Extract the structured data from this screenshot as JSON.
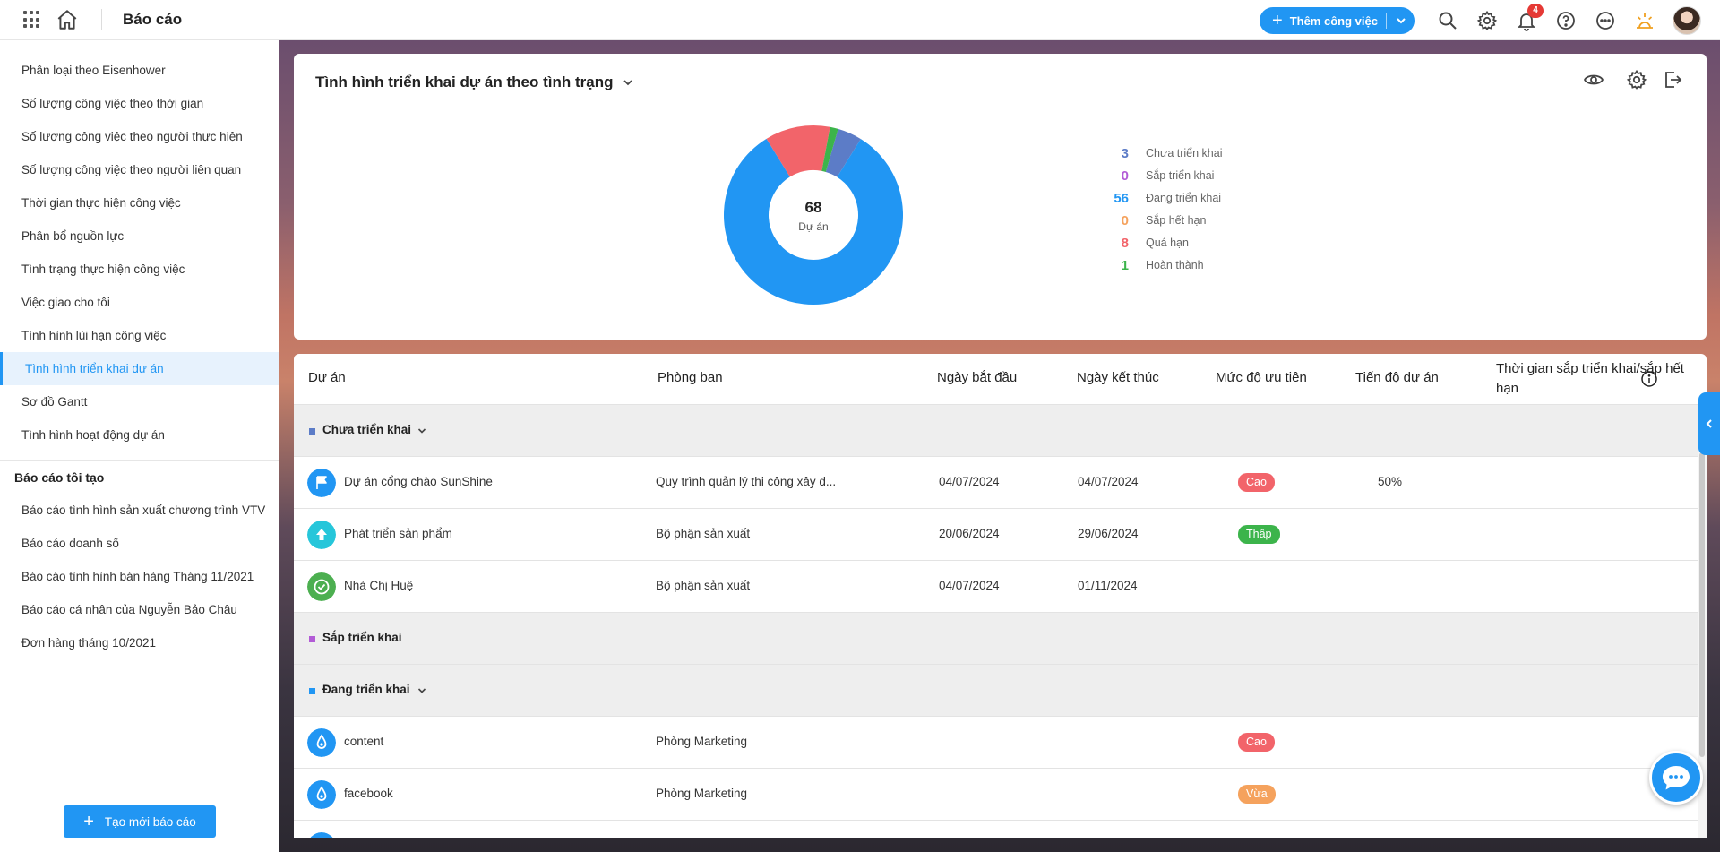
{
  "topbar": {
    "title": "Báo cáo",
    "add_button_label": "Thêm công việc",
    "notification_count": "4"
  },
  "sidebar": {
    "items": [
      {
        "label": "Phân loại theo Eisenhower",
        "active": false
      },
      {
        "label": "Số lượng công việc theo thời gian",
        "active": false
      },
      {
        "label": "Số lượng công việc theo người thực hiện",
        "active": false
      },
      {
        "label": "Số lượng công việc theo người liên quan",
        "active": false
      },
      {
        "label": "Thời gian thực hiện công việc",
        "active": false
      },
      {
        "label": "Phân bổ nguồn lực",
        "active": false
      },
      {
        "label": "Tình trạng thực hiện công việc",
        "active": false
      },
      {
        "label": "Việc giao cho tôi",
        "active": false
      },
      {
        "label": "Tình hình lùi hạn công việc",
        "active": false
      },
      {
        "label": "Tình hình triển khai dự án",
        "active": true
      },
      {
        "label": "Sơ đồ Gantt",
        "active": false
      },
      {
        "label": "Tình hình hoạt động dự án",
        "active": false
      }
    ],
    "my_reports_title": "Báo cáo tôi tạo",
    "my_reports": [
      "Báo cáo tình hình sản xuất chương trình VTV",
      "Báo cáo doanh số",
      "Báo cáo tình hình bán hàng Tháng 11/2021",
      "Báo cáo cá nhân của Nguyễn Bảo Châu",
      "Đơn hàng tháng 10/2021"
    ],
    "create_button_label": "Tạo mới báo cáo"
  },
  "chart_card": {
    "title": "Tình hình triển khai dự án theo tình trạng"
  },
  "chart_data": {
    "type": "pie",
    "center_value": "68",
    "center_label": "Dự án",
    "categories": [
      "Chưa triển khai",
      "Sắp triển khai",
      "Đang triển khai",
      "Sắp hết hạn",
      "Quá hạn",
      "Hoàn thành"
    ],
    "values": [
      3,
      0,
      56,
      0,
      8,
      1
    ],
    "colors": [
      "#5c7cc7",
      "#b25bd6",
      "#2196f3",
      "#f5a25d",
      "#f2646a",
      "#3cb44b"
    ],
    "legend_position": "right"
  },
  "table": {
    "headers": [
      "Dự án",
      "Phòng ban",
      "Ngày bắt đầu",
      "Ngày kết thúc",
      "Mức độ ưu tiên",
      "Tiến độ dự án",
      "Thời gian sắp triển khai/sắp hết hạn"
    ],
    "groups": {
      "g1": {
        "label": "Chưa triển khai",
        "color": "#5c7cc7"
      },
      "g2": {
        "label": "Sắp triển khai",
        "color": "#b25bd6"
      },
      "g3": {
        "label": "Đang triển khai",
        "color": "#2196f3"
      }
    },
    "rows": {
      "r1": {
        "name": "Dự án cổng chào SunShine",
        "dept": "Quy trình quản lý thi công xây d...",
        "start": "04/07/2024",
        "end": "04/07/2024",
        "priority": "Cao",
        "progress": "50%",
        "icon": "flag-icon",
        "icon_color": "#2196f3"
      },
      "r2": {
        "name": "Phát triển sản phẩm",
        "dept": "Bộ phận sản xuất",
        "start": "20/06/2024",
        "end": "29/06/2024",
        "priority": "Thấp",
        "icon": "upload-icon",
        "icon_color": "#26c6da"
      },
      "r3": {
        "name": "Nhà Chị Huệ",
        "dept": "Bộ phận sản xuất",
        "start": "04/07/2024",
        "end": "01/11/2024",
        "icon": "check-circle-icon",
        "icon_color": "#4caf50"
      },
      "r4": {
        "name": "content",
        "dept": "Phòng Marketing",
        "priority": "Cao",
        "icon": "drop-icon",
        "icon_color": "#2196f3"
      },
      "r5": {
        "name": "facebook",
        "dept": "Phòng Marketing",
        "priority": "Vừa",
        "icon": "drop-icon",
        "icon_color": "#2196f3"
      }
    },
    "priority_colors": {
      "Cao": "#f2646a",
      "Thấp": "#3cb44b",
      "Vừa": "#f5a25d"
    }
  }
}
